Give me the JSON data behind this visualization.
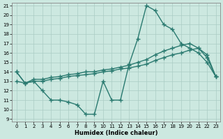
{
  "line1_x": [
    0,
    1,
    2,
    3,
    4,
    5,
    6,
    7,
    8,
    9,
    10,
    11,
    12,
    13,
    14,
    15,
    16,
    17,
    18,
    19,
    20,
    21,
    22,
    23
  ],
  "line1_y": [
    14.0,
    12.8,
    13.0,
    12.0,
    11.0,
    11.0,
    10.8,
    10.5,
    9.5,
    9.5,
    13.0,
    11.0,
    11.0,
    14.8,
    17.5,
    21.0,
    20.5,
    19.0,
    18.5,
    17.0,
    16.5,
    16.0,
    15.0,
    13.5
  ],
  "line2_x": [
    0,
    1,
    2,
    3,
    4,
    5,
    6,
    7,
    8,
    9,
    10,
    11,
    12,
    13,
    14,
    15,
    16,
    17,
    18,
    19,
    20,
    21,
    22,
    23
  ],
  "line2_y": [
    13.0,
    12.8,
    13.2,
    13.2,
    13.4,
    13.5,
    13.7,
    13.8,
    14.0,
    14.0,
    14.2,
    14.3,
    14.5,
    14.7,
    15.0,
    15.3,
    15.8,
    16.2,
    16.5,
    16.8,
    17.0,
    16.5,
    15.8,
    13.5
  ],
  "line3_x": [
    0,
    1,
    2,
    3,
    4,
    5,
    6,
    7,
    8,
    9,
    10,
    11,
    12,
    13,
    14,
    15,
    16,
    17,
    18,
    19,
    20,
    21,
    22,
    23
  ],
  "line3_y": [
    14.0,
    12.8,
    13.0,
    13.0,
    13.2,
    13.3,
    13.5,
    13.6,
    13.7,
    13.8,
    14.0,
    14.1,
    14.3,
    14.4,
    14.6,
    14.8,
    15.2,
    15.5,
    15.8,
    16.0,
    16.3,
    16.5,
    15.5,
    13.5
  ],
  "line_color": "#2a7a70",
  "bg_color": "#cce8e0",
  "grid_color": "#aaccc4",
  "xlabel": "Humidex (Indice chaleur)",
  "xlim_min": -0.5,
  "xlim_max": 23.5,
  "ylim_min": 8.7,
  "ylim_max": 21.3,
  "xticks": [
    0,
    1,
    2,
    3,
    4,
    5,
    6,
    7,
    8,
    9,
    10,
    11,
    12,
    13,
    14,
    15,
    16,
    17,
    18,
    19,
    20,
    21,
    22,
    23
  ],
  "yticks": [
    9,
    10,
    11,
    12,
    13,
    14,
    15,
    16,
    17,
    18,
    19,
    20,
    21
  ],
  "marker": "+",
  "markersize": 4,
  "markeredgewidth": 1.0,
  "linewidth": 1.0,
  "tick_labelsize": 5,
  "xlabel_fontsize": 6
}
